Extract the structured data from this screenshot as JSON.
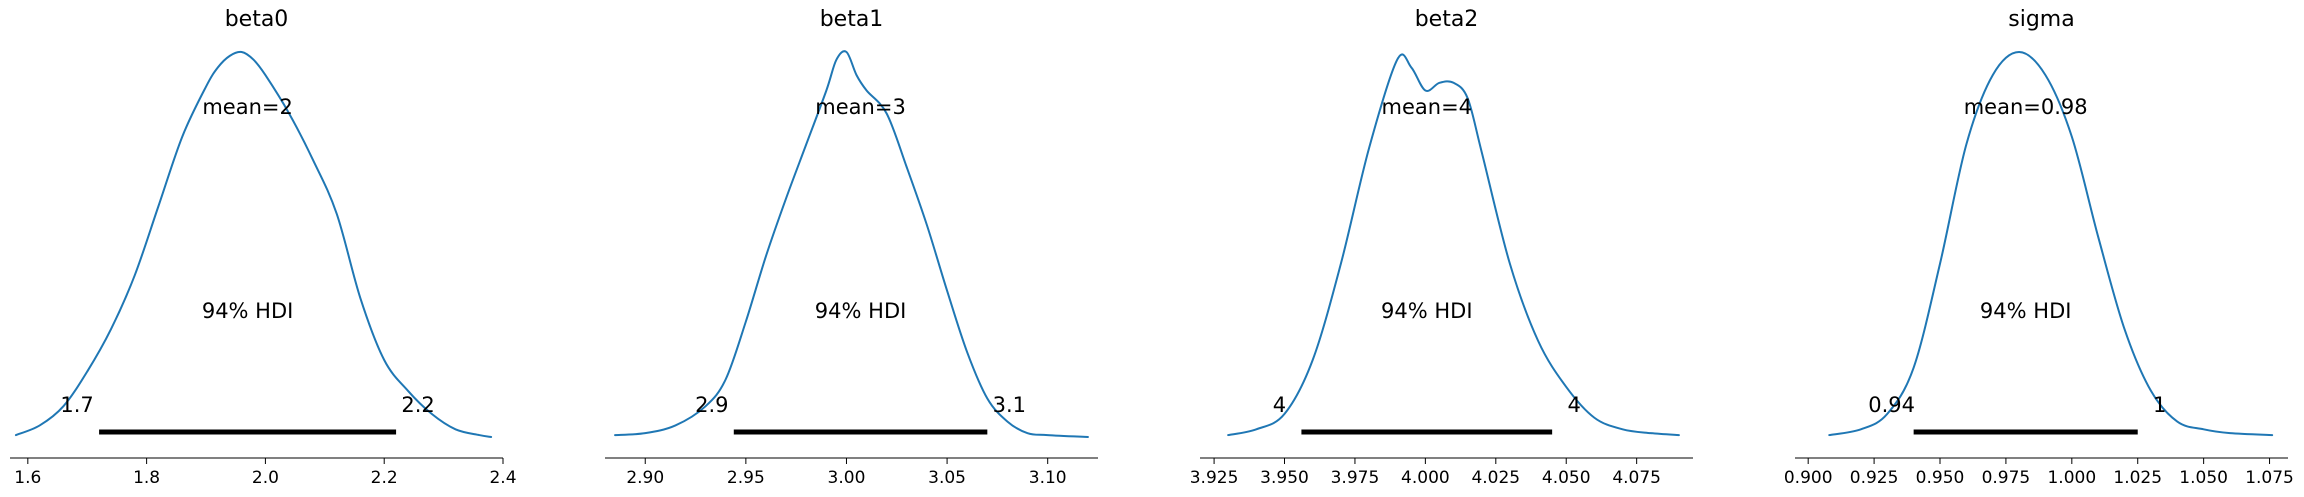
{
  "chart_data": [
    {
      "type": "line",
      "title": "beta0",
      "xlim": [
        1.57,
        2.4
      ],
      "xticks": [
        1.6,
        1.8,
        2.0,
        2.2,
        2.4
      ],
      "xtick_labels": [
        "1.6",
        "1.8",
        "2.0",
        "2.2",
        "2.4"
      ],
      "density": {
        "x": [
          1.58,
          1.62,
          1.66,
          1.7,
          1.74,
          1.78,
          1.82,
          1.86,
          1.9,
          1.92,
          1.94,
          1.96,
          1.98,
          2.0,
          2.04,
          2.08,
          2.12,
          2.16,
          2.2,
          2.24,
          2.28,
          2.32,
          2.36,
          2.38
        ],
        "y": [
          0.005,
          0.03,
          0.08,
          0.17,
          0.28,
          0.42,
          0.6,
          0.78,
          0.91,
          0.96,
          0.99,
          1.0,
          0.98,
          0.94,
          0.84,
          0.72,
          0.58,
          0.36,
          0.2,
          0.12,
          0.06,
          0.02,
          0.005,
          0.0
        ]
      },
      "mean_label": "mean=2",
      "hdi_label": "94% HDI",
      "hdi": [
        1.72,
        2.22
      ],
      "hdi_low_label": "1.7",
      "hdi_high_label": "2.2"
    },
    {
      "type": "line",
      "title": "beta1",
      "xlim": [
        2.88,
        3.125
      ],
      "xticks": [
        2.9,
        2.95,
        3.0,
        3.05,
        3.1
      ],
      "xtick_labels": [
        "2.90",
        "2.95",
        "3.00",
        "3.05",
        "3.10"
      ],
      "density": {
        "x": [
          2.885,
          2.9,
          2.915,
          2.93,
          2.94,
          2.95,
          2.96,
          2.97,
          2.98,
          2.99,
          2.995,
          3.0,
          3.005,
          3.01,
          3.02,
          3.03,
          3.04,
          3.05,
          3.06,
          3.07,
          3.08,
          3.09,
          3.1,
          3.12
        ],
        "y": [
          0.005,
          0.01,
          0.03,
          0.08,
          0.15,
          0.3,
          0.47,
          0.62,
          0.76,
          0.9,
          0.98,
          1.0,
          0.94,
          0.9,
          0.84,
          0.7,
          0.55,
          0.38,
          0.22,
          0.1,
          0.04,
          0.01,
          0.005,
          0.0
        ]
      },
      "mean_label": "mean=3",
      "hdi_label": "94% HDI",
      "hdi": [
        2.944,
        3.07
      ],
      "hdi_low_label": "2.9",
      "hdi_high_label": "3.1"
    },
    {
      "type": "line",
      "title": "beta2",
      "xlim": [
        3.92,
        4.095
      ],
      "xticks": [
        3.925,
        3.95,
        3.975,
        4.0,
        4.025,
        4.05,
        4.075
      ],
      "xtick_labels": [
        "3.925",
        "3.950",
        "3.975",
        "4.000",
        "4.025",
        "4.050",
        "4.075"
      ],
      "density": {
        "x": [
          3.93,
          3.94,
          3.95,
          3.96,
          3.97,
          3.98,
          3.99,
          3.995,
          4.0,
          4.005,
          4.01,
          4.015,
          4.02,
          4.03,
          4.04,
          4.05,
          4.06,
          4.07,
          4.08,
          4.09
        ],
        "y": [
          0.005,
          0.02,
          0.06,
          0.2,
          0.45,
          0.75,
          0.98,
          0.96,
          0.9,
          0.92,
          0.92,
          0.88,
          0.74,
          0.45,
          0.25,
          0.13,
          0.05,
          0.02,
          0.01,
          0.005
        ]
      },
      "mean_label": "mean=4",
      "hdi_label": "94% HDI",
      "hdi": [
        3.956,
        4.045
      ],
      "hdi_low_label": "4",
      "hdi_high_label": "4"
    },
    {
      "type": "line",
      "title": "sigma",
      "xlim": [
        0.895,
        1.082
      ],
      "xticks": [
        0.9,
        0.925,
        0.95,
        0.975,
        1.0,
        1.025,
        1.05,
        1.075
      ],
      "xtick_labels": [
        "0.900",
        "0.925",
        "0.950",
        "0.975",
        "1.000",
        "1.025",
        "1.050",
        "1.075"
      ],
      "density": {
        "x": [
          0.908,
          0.92,
          0.93,
          0.94,
          0.95,
          0.96,
          0.97,
          0.98,
          0.99,
          1.0,
          1.01,
          1.02,
          1.03,
          1.04,
          1.05,
          1.06,
          1.076
        ],
        "y": [
          0.005,
          0.02,
          0.06,
          0.18,
          0.45,
          0.76,
          0.94,
          1.0,
          0.94,
          0.78,
          0.52,
          0.28,
          0.12,
          0.04,
          0.02,
          0.01,
          0.005
        ]
      },
      "mean_label": "mean=0.98",
      "hdi_label": "94% HDI",
      "hdi": [
        0.94,
        1.025
      ],
      "hdi_low_label": "0.94",
      "hdi_high_label": "1"
    }
  ],
  "colors": {
    "density_line": "#1f77b4",
    "hdi_bar": "#000000",
    "axis": "#000000"
  }
}
